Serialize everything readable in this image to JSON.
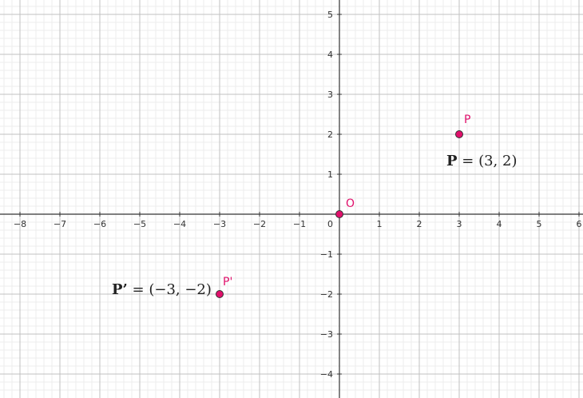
{
  "chart_data": {
    "type": "scatter",
    "title": "",
    "xlabel": "",
    "ylabel": "",
    "xlim": [
      -8.5,
      6.1
    ],
    "ylim": [
      -4.6,
      5.36
    ],
    "x_ticks": [
      -8,
      -7,
      -6,
      -5,
      -4,
      -3,
      -2,
      -1,
      1,
      2,
      3,
      4,
      5,
      6
    ],
    "y_ticks": [
      -4,
      -3,
      -2,
      -1,
      1,
      2,
      3,
      4,
      5
    ],
    "origin_tick_label": "0",
    "grid": true,
    "minor_grid_divisions": 5,
    "points": [
      {
        "name": "P",
        "x": 3,
        "y": 2,
        "color": "#e0106b",
        "equation": {
          "bold": "P",
          "rest": " = (3, 2)"
        }
      },
      {
        "name": "P'",
        "x": -3,
        "y": -2,
        "color": "#e0106b",
        "equation": {
          "bold": "P’",
          "rest": " = (−3, −2)"
        }
      },
      {
        "name": "O",
        "x": 0,
        "y": 0,
        "color": "#e0106b"
      }
    ]
  },
  "colors": {
    "axis": "#333333",
    "major_grid": "#c0c0c0",
    "minor_grid": "#ececec",
    "point_fill": "#e0106b",
    "label": "#e0106b"
  }
}
